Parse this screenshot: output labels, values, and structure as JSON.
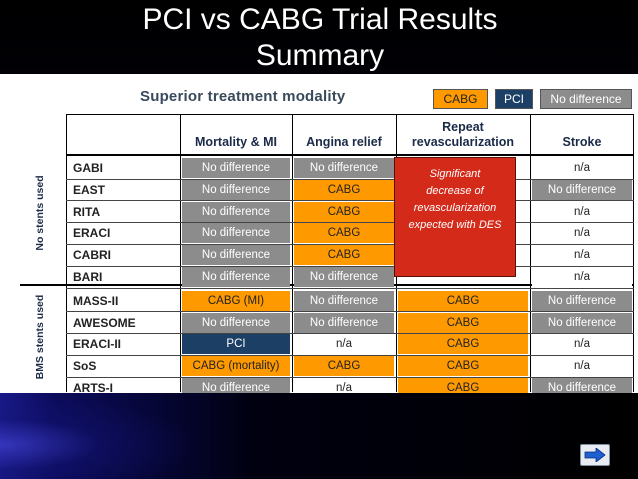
{
  "slide": {
    "title_line1": "PCI vs CABG Trial Results",
    "title_line2": "Summary"
  },
  "table": {
    "heading": "Superior treatment modality",
    "legend": {
      "cabg": "CABG",
      "pci": "PCI",
      "no_difference": "No difference"
    },
    "columns": [
      "Mortality & MI",
      "Angina relief",
      "Repeat revascularization",
      "Stroke"
    ],
    "group_labels": {
      "no_stents": "No stents used",
      "bms": "BMS stents used"
    },
    "rows": [
      {
        "trial": "GABI",
        "mortality_mi": "No difference",
        "angina": "No difference",
        "repeat": "",
        "stroke": "n/a"
      },
      {
        "trial": "EAST",
        "mortality_mi": "No difference",
        "angina": "CABG",
        "repeat": "",
        "stroke": "No difference"
      },
      {
        "trial": "RITA",
        "mortality_mi": "No difference",
        "angina": "CABG",
        "repeat": "",
        "stroke": "n/a"
      },
      {
        "trial": "ERACI",
        "mortality_mi": "No difference",
        "angina": "CABG",
        "repeat": "",
        "stroke": "n/a"
      },
      {
        "trial": "CABRI",
        "mortality_mi": "No difference",
        "angina": "CABG",
        "repeat": "",
        "stroke": "n/a"
      },
      {
        "trial": "BARI",
        "mortality_mi": "No difference",
        "angina": "No difference",
        "repeat": "",
        "stroke": "n/a"
      },
      {
        "trial": "MASS-II",
        "mortality_mi": "CABG (MI)",
        "angina": "No difference",
        "repeat": "CABG",
        "stroke": "No difference"
      },
      {
        "trial": "AWESOME",
        "mortality_mi": "No difference",
        "angina": "No difference",
        "repeat": "CABG",
        "stroke": "No difference"
      },
      {
        "trial": "ERACI-II",
        "mortality_mi": "PCI",
        "angina": "n/a",
        "repeat": "CABG",
        "stroke": "n/a"
      },
      {
        "trial": "SoS",
        "mortality_mi": "CABG (mortality)",
        "angina": "CABG",
        "repeat": "CABG",
        "stroke": "n/a"
      },
      {
        "trial": "ARTS-I",
        "mortality_mi": "No difference",
        "angina": "n/a",
        "repeat": "CABG",
        "stroke": "No difference"
      }
    ],
    "note": {
      "line1": "Significant",
      "line2": "decrease of",
      "line3": "revascularization",
      "line4": "expected with DES"
    }
  },
  "colors": {
    "cabg": "#ff9900",
    "pci": "#1c3f66",
    "no_difference": "#8c8c8c",
    "note": "#d42a1a"
  },
  "navigation": {
    "next_icon": "right-arrow-icon"
  }
}
